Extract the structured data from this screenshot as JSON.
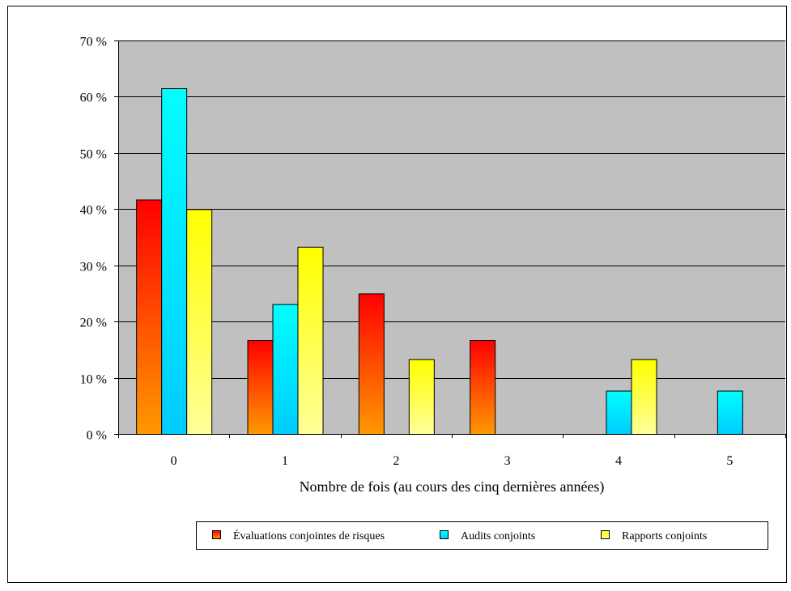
{
  "chart_data": {
    "type": "bar",
    "title": "",
    "xlabel": "Nombre de fois (au cours des cinq dernières années)",
    "ylabel": "",
    "categories": [
      "0",
      "1",
      "2",
      "3",
      "4",
      "5"
    ],
    "ylim": [
      0,
      70
    ],
    "yticks": [
      0,
      10,
      20,
      30,
      40,
      50,
      60,
      70
    ],
    "ytick_labels": [
      "0 %",
      "10 %",
      "20 %",
      "30 %",
      "40 %",
      "50 %",
      "60 %",
      "70 %"
    ],
    "grid": true,
    "legend_position": "bottom",
    "plot_background": "#c0c0c0",
    "series": [
      {
        "name": "Évaluations conjointes de risques",
        "values": [
          41.7,
          16.7,
          25.0,
          16.7,
          0,
          0
        ],
        "color_top": "#ff0000",
        "color_bottom": "#ff9900"
      },
      {
        "name": "Audits conjoints",
        "values": [
          61.5,
          23.1,
          0,
          0,
          7.7,
          7.7
        ],
        "color_top": "#00ffff",
        "color_bottom": "#00ccff"
      },
      {
        "name": "Rapports conjoints",
        "values": [
          40.0,
          33.3,
          13.3,
          0,
          13.3,
          0
        ],
        "color_top": "#ffff00",
        "color_bottom": "#ffff99"
      }
    ]
  }
}
